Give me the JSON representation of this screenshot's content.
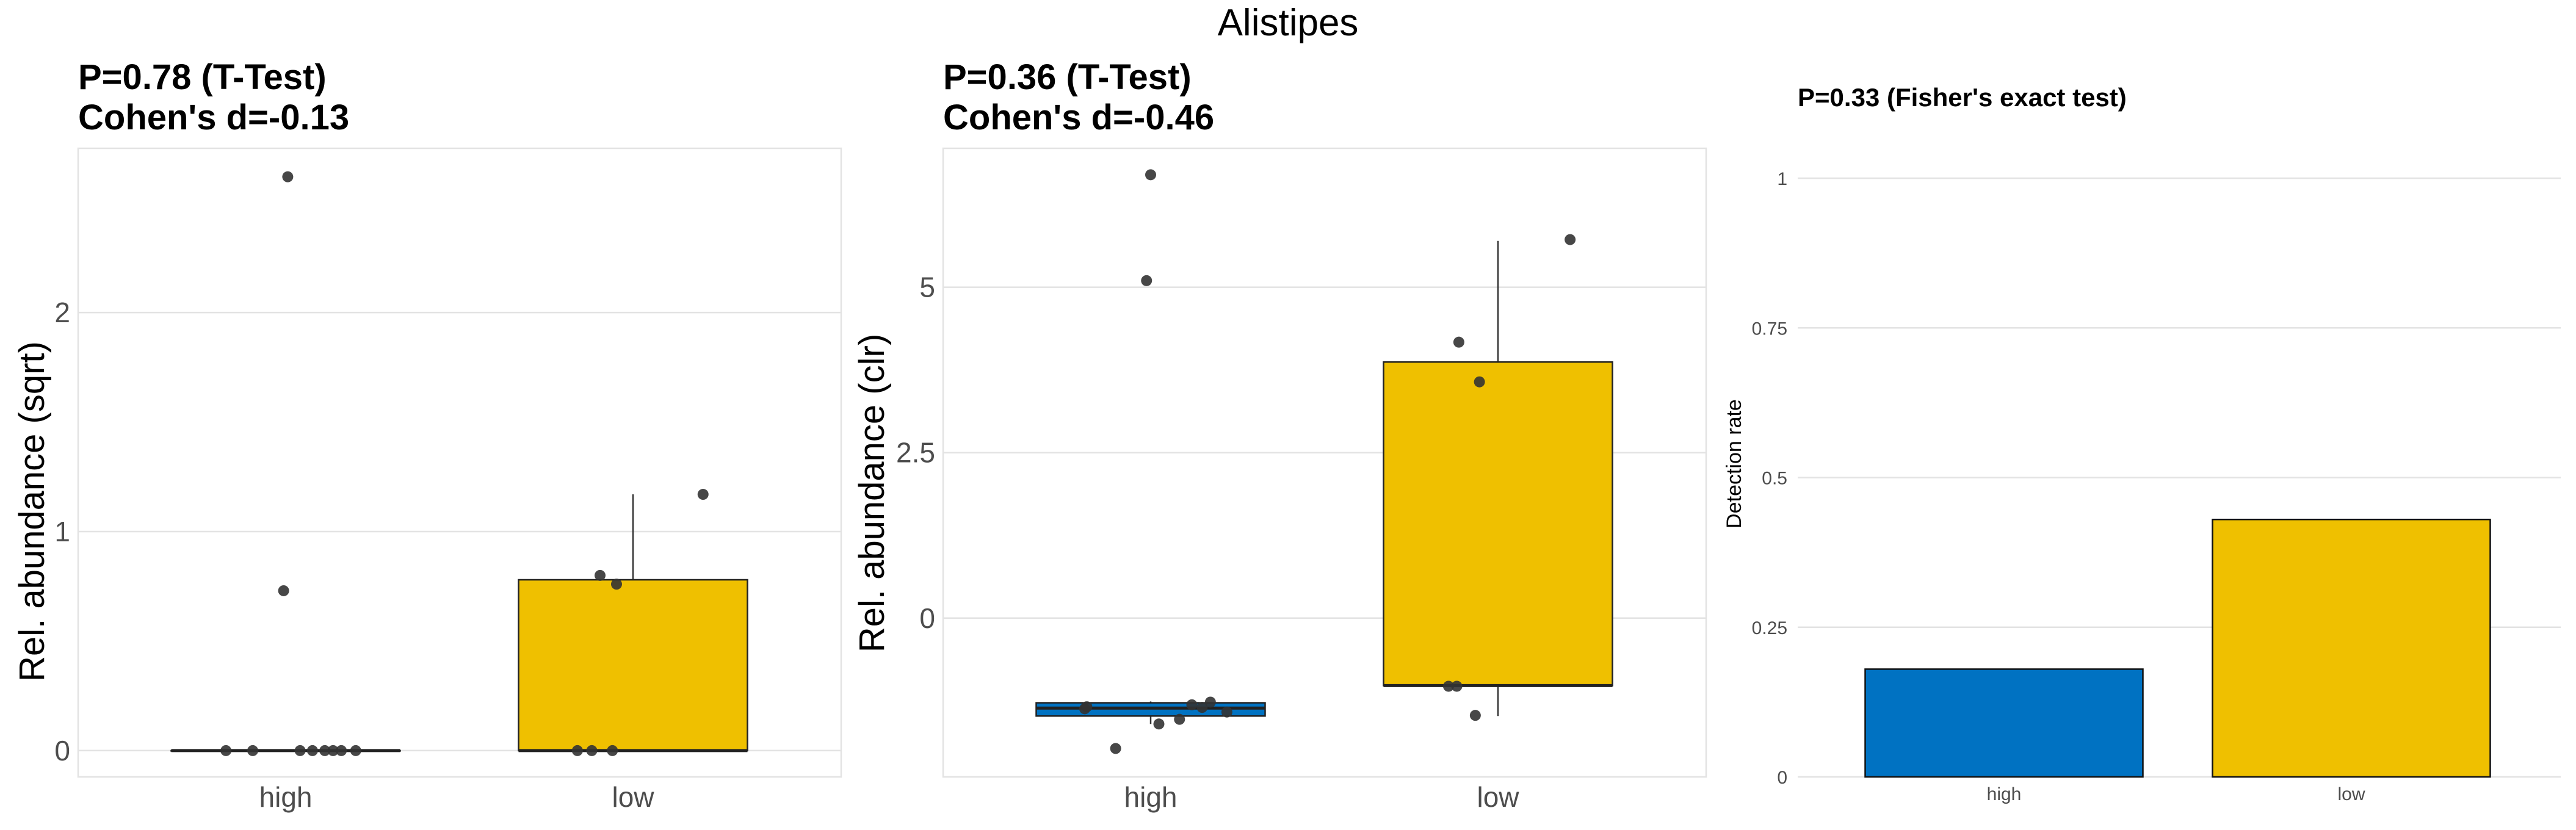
{
  "main_title": "Alistipes",
  "colors": {
    "high": "#0072C2",
    "low": "#EFC000",
    "points": "#333333",
    "grid": "#e3e3e3"
  },
  "chart_data": [
    {
      "type": "box",
      "title_line1": "P=0.78 (T-Test)",
      "title_line2": "Cohen's d=-0.13",
      "ylabel": "Rel. abundance (sqrt)",
      "xlabel": "",
      "categories": [
        "high",
        "low"
      ],
      "ylim": [
        -0.12,
        2.75
      ],
      "yticks": [
        0,
        1,
        2
      ],
      "ytick_labels": [
        "0",
        "1",
        "2"
      ],
      "grid": true,
      "boxes": [
        {
          "group": "high",
          "min": 0,
          "q1": 0,
          "median": 0,
          "q3": 0,
          "max": 0
        },
        {
          "group": "low",
          "min": 0,
          "q1": 0,
          "median": 0,
          "q3": 0.78,
          "max": 1.17
        }
      ],
      "points": [
        {
          "group": "high",
          "jitter": -0.29,
          "y": 0
        },
        {
          "group": "high",
          "jitter": -0.16,
          "y": 0
        },
        {
          "group": "high",
          "jitter": 0.07,
          "y": 0
        },
        {
          "group": "high",
          "jitter": 0.13,
          "y": 0
        },
        {
          "group": "high",
          "jitter": 0.19,
          "y": 0
        },
        {
          "group": "high",
          "jitter": 0.23,
          "y": 0
        },
        {
          "group": "high",
          "jitter": 0.27,
          "y": 0
        },
        {
          "group": "high",
          "jitter": 0.34,
          "y": 0
        },
        {
          "group": "high",
          "jitter": -0.01,
          "y": 0.73
        },
        {
          "group": "high",
          "jitter": 0.01,
          "y": 2.62
        },
        {
          "group": "low",
          "jitter": -0.27,
          "y": 0
        },
        {
          "group": "low",
          "jitter": -0.2,
          "y": 0
        },
        {
          "group": "low",
          "jitter": -0.1,
          "y": 0
        },
        {
          "group": "low",
          "jitter": -0.16,
          "y": 0.8
        },
        {
          "group": "low",
          "jitter": -0.08,
          "y": 0.76
        },
        {
          "group": "low",
          "jitter": 0.34,
          "y": 1.17
        }
      ]
    },
    {
      "type": "box",
      "title_line1": "P=0.36 (T-Test)",
      "title_line2": "Cohen's d=-0.46",
      "ylabel": "Rel. abundance (clr)",
      "xlabel": "",
      "categories": [
        "high",
        "low"
      ],
      "ylim": [
        -2.4,
        7.1
      ],
      "yticks": [
        0,
        2.5,
        5
      ],
      "ytick_labels": [
        "0",
        "2.5",
        "5"
      ],
      "grid": true,
      "boxes": [
        {
          "group": "high",
          "min": -1.6,
          "q1": -1.48,
          "median": -1.36,
          "q3": -1.28,
          "max": -1.26
        },
        {
          "group": "low",
          "min": -1.48,
          "q1": -1.02,
          "median": -1.02,
          "q3": 3.87,
          "max": 5.7
        }
      ],
      "points": [
        {
          "group": "high",
          "jitter": -0.17,
          "y": -1.97
        },
        {
          "group": "high",
          "jitter": -0.32,
          "y": -1.37
        },
        {
          "group": "high",
          "jitter": -0.31,
          "y": -1.34
        },
        {
          "group": "high",
          "jitter": 0.04,
          "y": -1.6
        },
        {
          "group": "high",
          "jitter": 0.14,
          "y": -1.53
        },
        {
          "group": "high",
          "jitter": 0.2,
          "y": -1.31
        },
        {
          "group": "high",
          "jitter": 0.25,
          "y": -1.35
        },
        {
          "group": "high",
          "jitter": 0.29,
          "y": -1.27
        },
        {
          "group": "high",
          "jitter": 0.37,
          "y": -1.42
        },
        {
          "group": "high",
          "jitter": -0.02,
          "y": 5.1
        },
        {
          "group": "high",
          "jitter": 0.0,
          "y": 6.7
        },
        {
          "group": "low",
          "jitter": -0.24,
          "y": -1.03
        },
        {
          "group": "low",
          "jitter": -0.2,
          "y": -1.03
        },
        {
          "group": "low",
          "jitter": -0.11,
          "y": -1.47
        },
        {
          "group": "low",
          "jitter": -0.19,
          "y": 4.17
        },
        {
          "group": "low",
          "jitter": -0.09,
          "y": 3.57
        },
        {
          "group": "low",
          "jitter": 0.35,
          "y": 5.72
        }
      ]
    },
    {
      "type": "bar",
      "title_line1": "P=0.33 (Fisher's exact test)",
      "title_line2": "",
      "ylabel": "Detection rate",
      "xlabel": "",
      "categories": [
        "high",
        "low"
      ],
      "values": [
        0.18,
        0.43
      ],
      "ylim": [
        0,
        1.05
      ],
      "yticks": [
        0,
        0.25,
        0.5,
        0.75,
        1
      ],
      "ytick_labels": [
        "0",
        "0.25",
        "0.5",
        "0.75",
        "1"
      ],
      "grid": true
    }
  ]
}
